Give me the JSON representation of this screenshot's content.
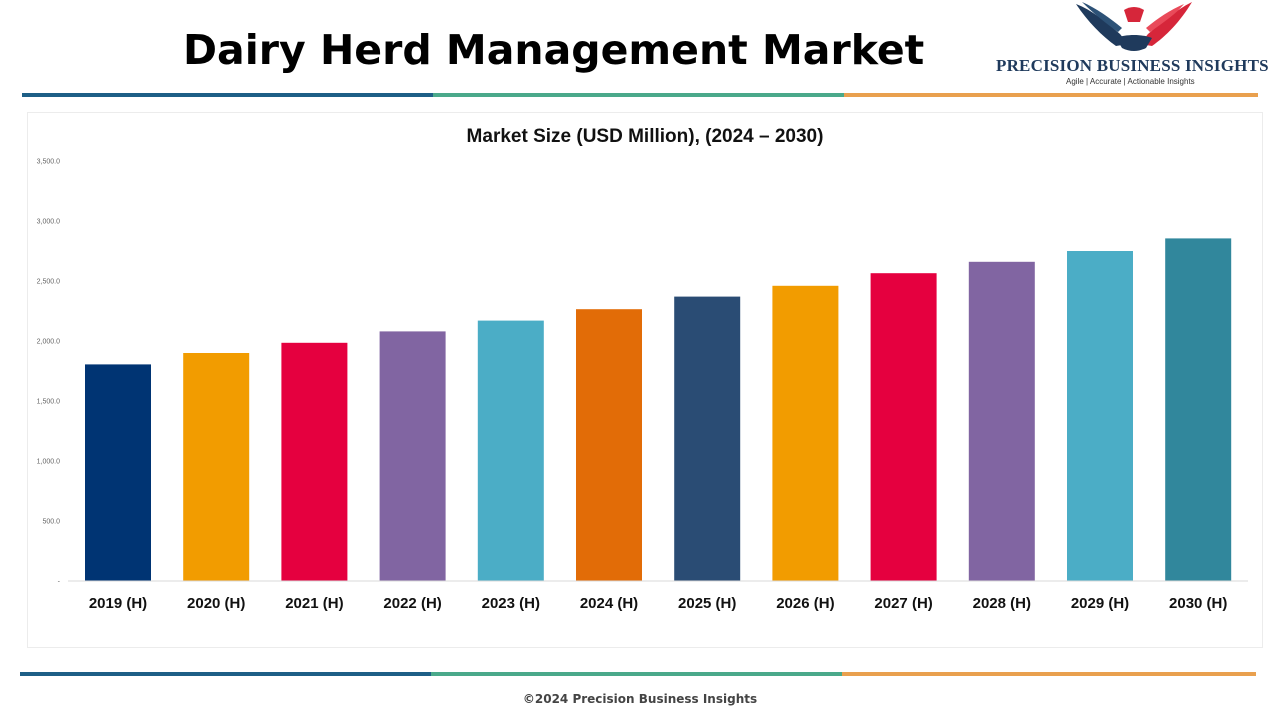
{
  "header": {
    "title": "Dairy Herd Management Market"
  },
  "logo": {
    "name": "PRECISION BUSINESS INSIGHTS",
    "tagline": "Agile | Accurate | Actionable Insights",
    "icon": "eagle-handshake-icon",
    "colors": {
      "blue": "#1f3a5c",
      "red": "#d6263a"
    }
  },
  "stripe_colors": [
    "#1d5f86",
    "#4aa98a",
    "#e9a04e"
  ],
  "chart_data": {
    "type": "bar",
    "title": "Market Size (USD Million), (2024 – 2030)",
    "xlabel": "",
    "ylabel": "",
    "ylim": [
      0,
      3500
    ],
    "yticks": [
      0,
      500,
      1000,
      1500,
      2000,
      2500,
      3000,
      3500
    ],
    "ytick_labels": [
      "-",
      "500.0",
      "1,000.0",
      "1,500.0",
      "2,000.0",
      "2,500.0",
      "3,000.0",
      "3,500.0"
    ],
    "categories": [
      "2019 (H)",
      "2020 (H)",
      "2021 (H)",
      "2022 (H)",
      "2023 (H)",
      "2024 (H)",
      "2025 (H)",
      "2026 (H)",
      "2027 (H)",
      "2028 (H)",
      "2029 (H)",
      "2030 (H)"
    ],
    "values": [
      1805,
      1900,
      1985,
      2080,
      2170,
      2265,
      2370,
      2460,
      2565,
      2660,
      2750,
      2855
    ],
    "colors": [
      "#003473",
      "#f29c00",
      "#e5003f",
      "#8165a2",
      "#4badc6",
      "#e26c07",
      "#2a4c74",
      "#f29c00",
      "#e5003f",
      "#8165a2",
      "#4badc6",
      "#31879c"
    ],
    "grid": false,
    "legend": "none"
  },
  "footer": {
    "text": "©2024 Precision Business Insights"
  }
}
